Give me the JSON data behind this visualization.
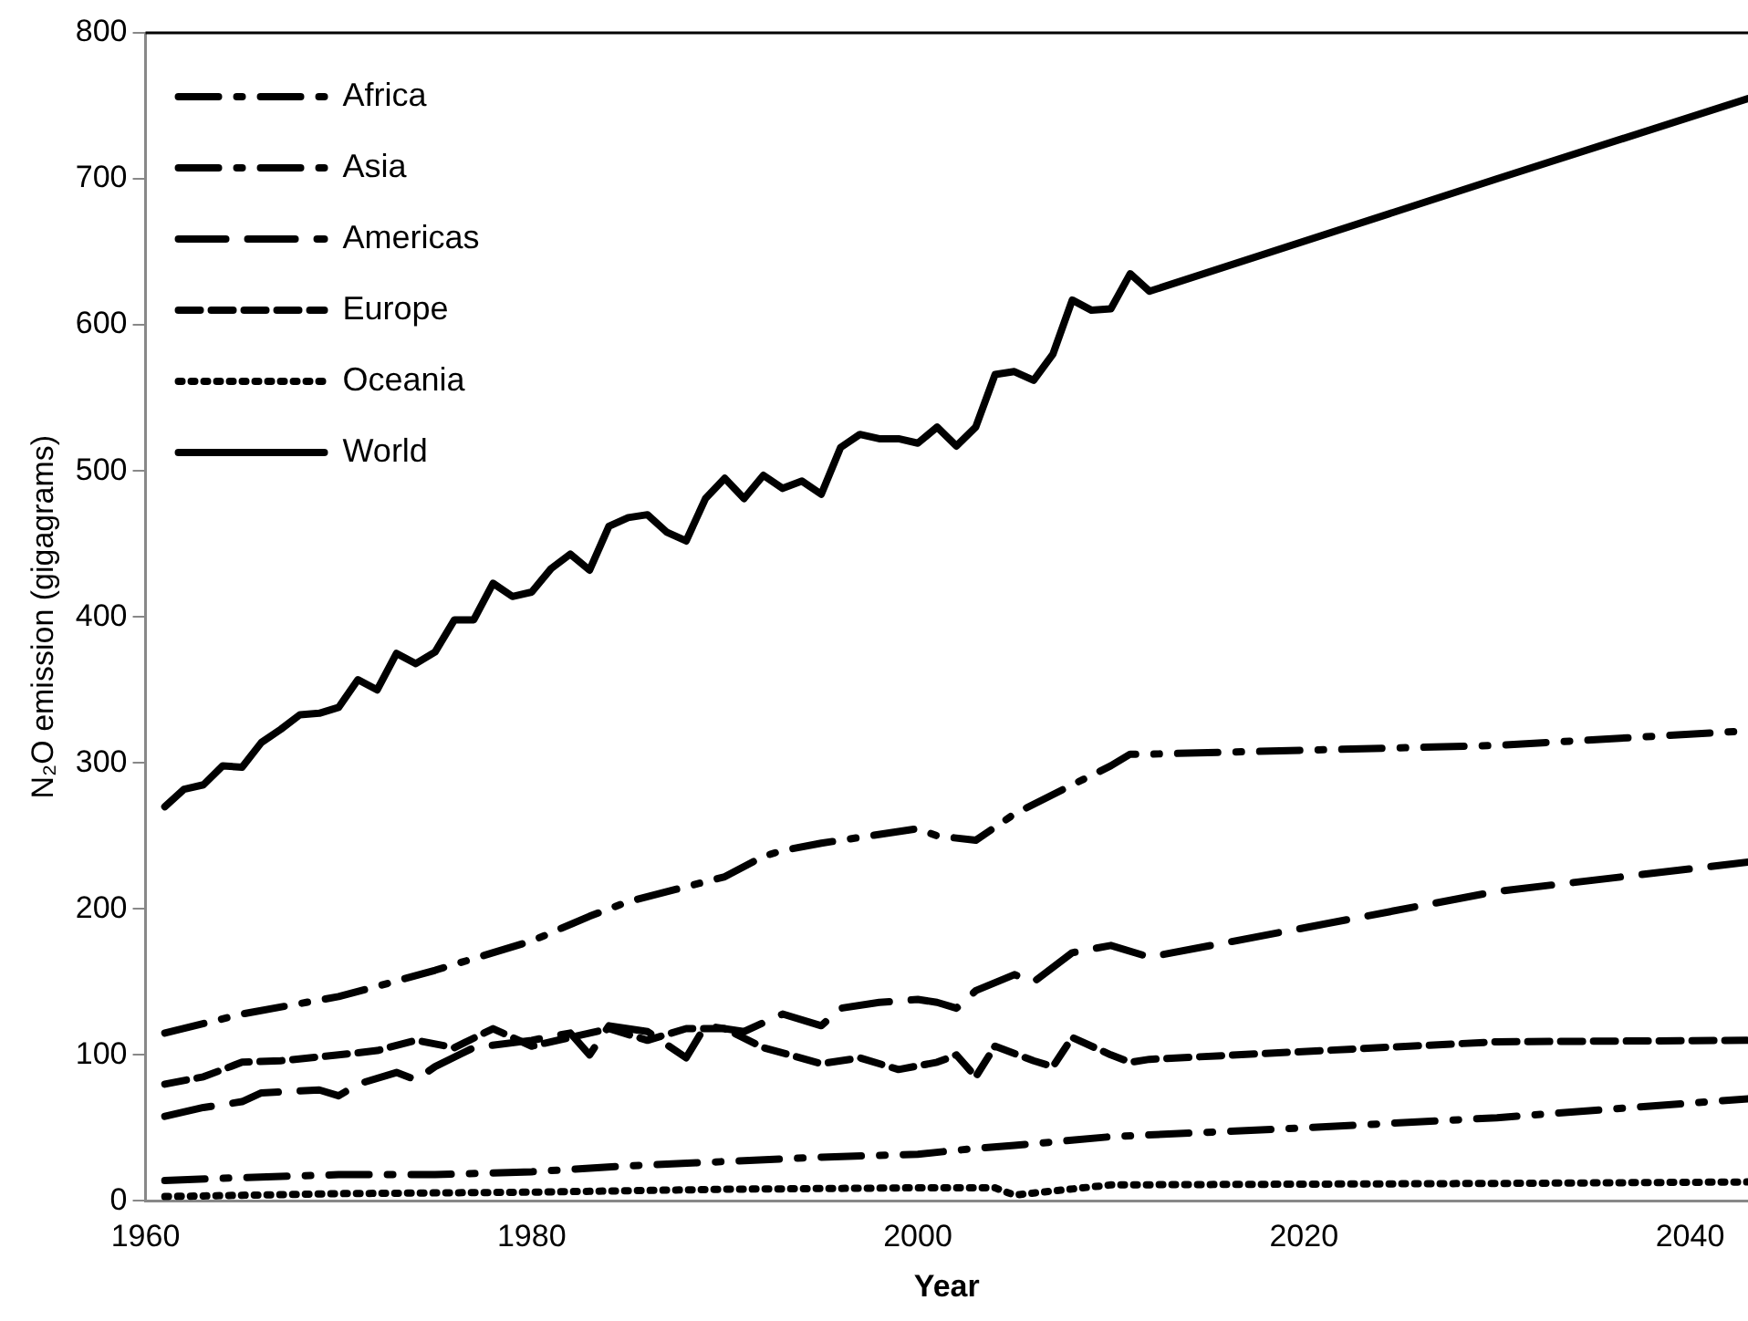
{
  "chart_data": {
    "type": "line",
    "xlabel": "Year",
    "ylabel": "N₂O emission (gigagrams)",
    "xlim": [
      1960,
      2043
    ],
    "xticks": [
      1960,
      1980,
      2000,
      2020,
      2040
    ],
    "ylim": [
      0,
      800
    ],
    "yticks": [
      0,
      100,
      200,
      300,
      400,
      500,
      600,
      700,
      800
    ],
    "grid": false,
    "legend": "top left",
    "marker": "none",
    "series": [
      {
        "name": "Africa",
        "color": "#000000",
        "line_style": "dashdot",
        "x": [
          1961,
          1965,
          1970,
          1975,
          1980,
          1985,
          1990,
          1995,
          2000,
          2003,
          2005,
          2010,
          2020,
          2030,
          2043
        ],
        "values": [
          14,
          16,
          18,
          18,
          20,
          24,
          27,
          30,
          32,
          36,
          38,
          44,
          50,
          57,
          70
        ]
      },
      {
        "name": "Asia",
        "color": "#000000",
        "line_style": "dashdot",
        "x": [
          1961,
          1965,
          1970,
          1972,
          1975,
          1980,
          1983,
          1985,
          1990,
          1992,
          1993,
          1995,
          2000,
          2001,
          2003,
          2005,
          2008,
          2010,
          2011,
          2012,
          2030,
          2043
        ],
        "values": [
          115,
          128,
          140,
          147,
          158,
          178,
          195,
          205,
          222,
          236,
          240,
          245,
          255,
          250,
          247,
          265,
          285,
          298,
          306,
          306,
          312,
          322
        ]
      },
      {
        "name": "Americas",
        "color": "#000000",
        "line_style": "longdash",
        "x": [
          1961,
          1963,
          1965,
          1966,
          1969,
          1970,
          1971,
          1973,
          1974,
          1975,
          1977,
          1980,
          1982,
          1983,
          1984,
          1986,
          1988,
          1989,
          1991,
          1993,
          1995,
          1996,
          1998,
          2000,
          2001,
          2002,
          2003,
          2005,
          2006,
          2008,
          2010,
          2012,
          2030,
          2043
        ],
        "values": [
          58,
          64,
          68,
          74,
          76,
          72,
          80,
          88,
          83,
          92,
          105,
          110,
          115,
          100,
          120,
          116,
          98,
          120,
          116,
          128,
          120,
          132,
          136,
          138,
          136,
          132,
          144,
          155,
          150,
          170,
          175,
          167,
          212,
          232
        ]
      },
      {
        "name": "Europe",
        "color": "#000000",
        "line_style": "dashed",
        "x": [
          1961,
          1963,
          1965,
          1967,
          1970,
          1972,
          1974,
          1976,
          1978,
          1980,
          1982,
          1984,
          1986,
          1988,
          1990,
          1992,
          1995,
          1997,
          1999,
          2001,
          2002,
          2003,
          2004,
          2006,
          2007,
          2008,
          2010,
          2011,
          2012,
          2030,
          2043
        ],
        "values": [
          80,
          85,
          95,
          96,
          100,
          103,
          110,
          105,
          118,
          106,
          112,
          118,
          110,
          118,
          118,
          105,
          94,
          98,
          90,
          95,
          100,
          85,
          106,
          96,
          92,
          112,
          100,
          95,
          97,
          109,
          110
        ]
      },
      {
        "name": "Oceania",
        "color": "#000000",
        "line_style": "dotted",
        "x": [
          1961,
          1970,
          1980,
          1990,
          2000,
          2004,
          2005,
          2010,
          2030,
          2043
        ],
        "values": [
          3,
          5,
          6,
          8,
          9,
          9,
          4,
          11,
          12,
          13
        ]
      },
      {
        "name": "World",
        "color": "#000000",
        "line_style": "solid",
        "x": [
          1961,
          1962,
          1963,
          1964,
          1965,
          1966,
          1967,
          1968,
          1969,
          1970,
          1971,
          1972,
          1973,
          1974,
          1975,
          1976,
          1977,
          1978,
          1979,
          1980,
          1981,
          1982,
          1983,
          1984,
          1985,
          1986,
          1987,
          1988,
          1989,
          1990,
          1991,
          1992,
          1993,
          1994,
          1995,
          1996,
          1997,
          1998,
          1999,
          2000,
          2001,
          2002,
          2003,
          2004,
          2005,
          2006,
          2007,
          2008,
          2009,
          2010,
          2011,
          2012,
          2030,
          2043
        ],
        "values": [
          270,
          282,
          285,
          298,
          297,
          314,
          323,
          333,
          334,
          338,
          357,
          350,
          375,
          368,
          376,
          398,
          398,
          423,
          414,
          417,
          433,
          443,
          432,
          462,
          468,
          470,
          458,
          452,
          481,
          495,
          481,
          497,
          488,
          493,
          484,
          516,
          525,
          522,
          522,
          519,
          530,
          517,
          530,
          566,
          568,
          562,
          580,
          617,
          610,
          611,
          635,
          623,
          700,
          755
        ]
      }
    ]
  }
}
